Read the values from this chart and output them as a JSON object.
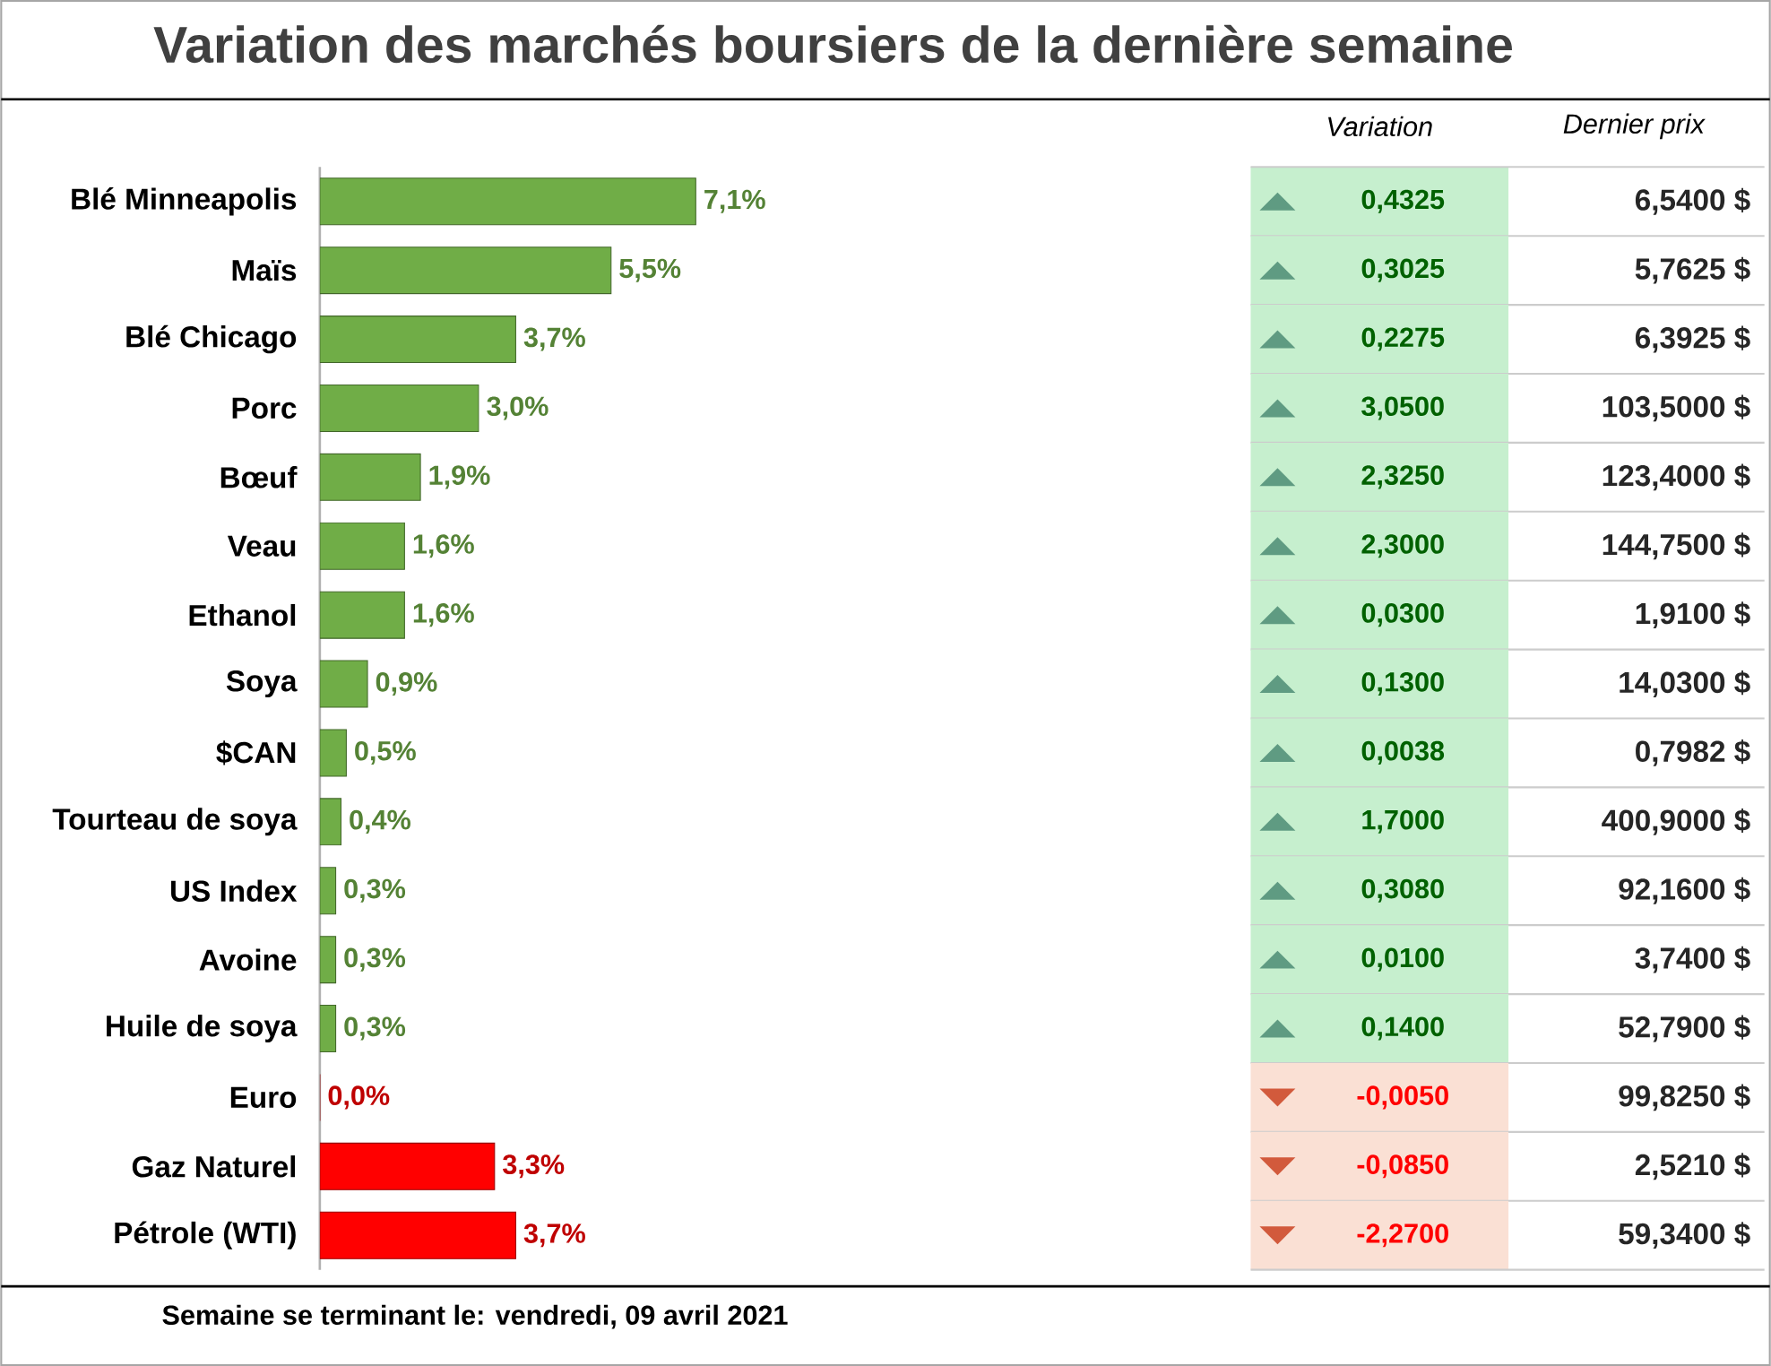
{
  "chart_data": [
    {
      "type": "bar",
      "orientation": "horizontal",
      "title": "Variation des marchés boursiers de la dernière semaine",
      "categories": [
        "Blé Minneapolis",
        "Maïs",
        "Blé Chicago",
        "Porc",
        "Bœuf",
        "Veau",
        "Ethanol",
        "Soya",
        "$CAN",
        "Tourteau de soya",
        "US Index",
        "Avoine",
        "Huile de soya",
        "Euro",
        "Gaz Naturel",
        "Pétrole (WTI)"
      ],
      "values": [
        7.1,
        5.5,
        3.7,
        3.0,
        1.9,
        1.6,
        1.6,
        0.9,
        0.5,
        0.4,
        0.3,
        0.3,
        0.3,
        0.0,
        3.3,
        3.7
      ],
      "value_labels": [
        "7,1%",
        "5,5%",
        "3,7%",
        "3,0%",
        "1,9%",
        "1,6%",
        "1,6%",
        "0,9%",
        "0,5%",
        "0,4%",
        "0,3%",
        "0,3%",
        "0,3%",
        "0,0%",
        "3,3%",
        "3,7%"
      ],
      "colors": [
        "#70ad47",
        "#70ad47",
        "#70ad47",
        "#70ad47",
        "#70ad47",
        "#70ad47",
        "#70ad47",
        "#70ad47",
        "#70ad47",
        "#70ad47",
        "#70ad47",
        "#70ad47",
        "#70ad47",
        "#ff0000",
        "#ff0000",
        "#ff0000"
      ],
      "tick_labels": "y",
      "annotations": [
        "Semaine se terminant le:  vendredi, 09 avril 2021"
      ]
    },
    {
      "type": "other",
      "annotations": [
        "Variation",
        "Dernier prix",
        "0,4325",
        "6,5400 $",
        "0,3025",
        "5,7625 $",
        "0,2275",
        "6,3925 $",
        "3,0500",
        "103,5000 $",
        "2,3250",
        "123,4000 $",
        "2,3000",
        "144,7500 $",
        "0,0300",
        "1,9100 $",
        "0,1300",
        "14,0300 $",
        "0,0038",
        "0,7982 $",
        "1,7000",
        "400,9000 $",
        "0,3080",
        "92,1600 $",
        "0,0100",
        "3,7400 $",
        "0,1400",
        "52,7900 $",
        "-0,0050",
        "99,8250 $",
        "-0,0850",
        "2,5210 $",
        "-2,2700",
        "59,3400 $"
      ]
    }
  ]
}
